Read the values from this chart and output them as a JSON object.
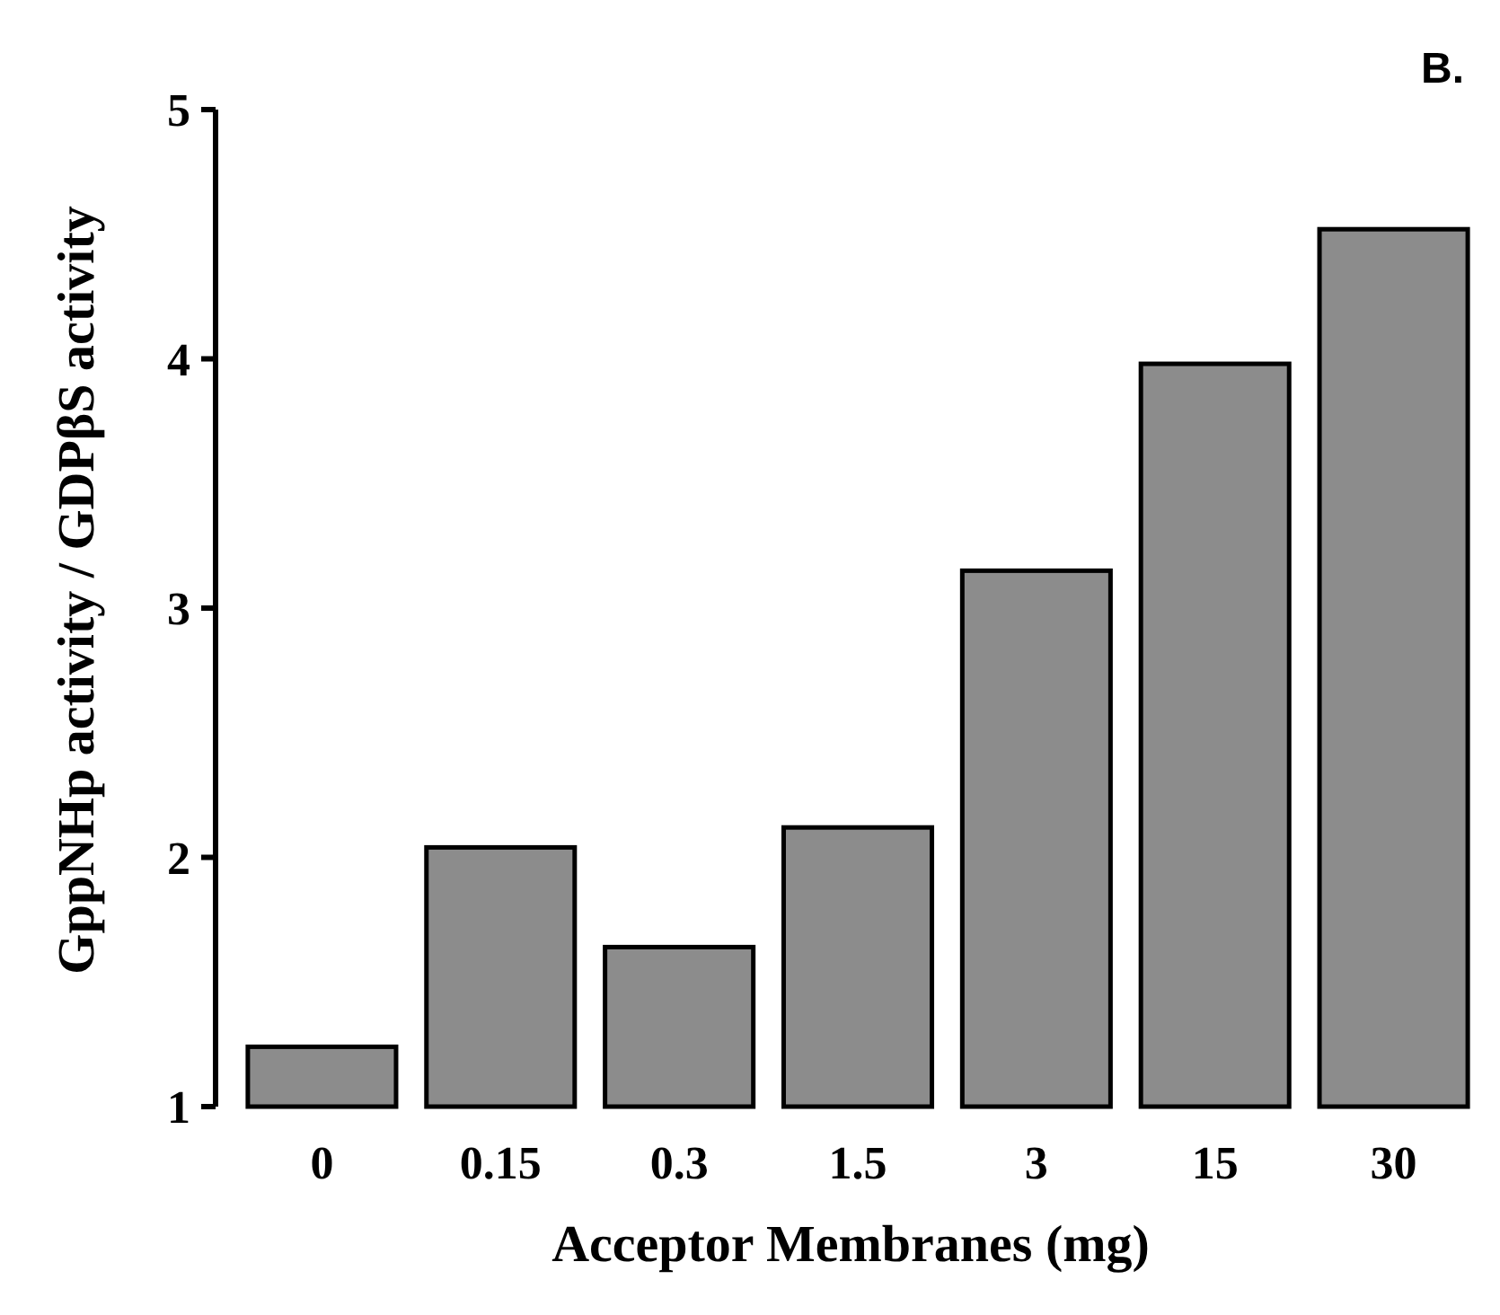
{
  "chart_data": {
    "type": "bar",
    "title": "B.",
    "xlabel": "Acceptor Membranes (mg)",
    "ylabel": "GppNHp activity / GDPβS  activity",
    "categories": [
      "0",
      "0.15",
      "0.3",
      "1.5",
      "3",
      "15",
      "30"
    ],
    "values": [
      1.24,
      2.04,
      1.64,
      2.12,
      3.15,
      3.98,
      4.52
    ],
    "color": "#8c8c8c",
    "ylim": [
      1,
      5
    ],
    "yticks": [
      1,
      2,
      3,
      4,
      5
    ],
    "grid": false
  }
}
